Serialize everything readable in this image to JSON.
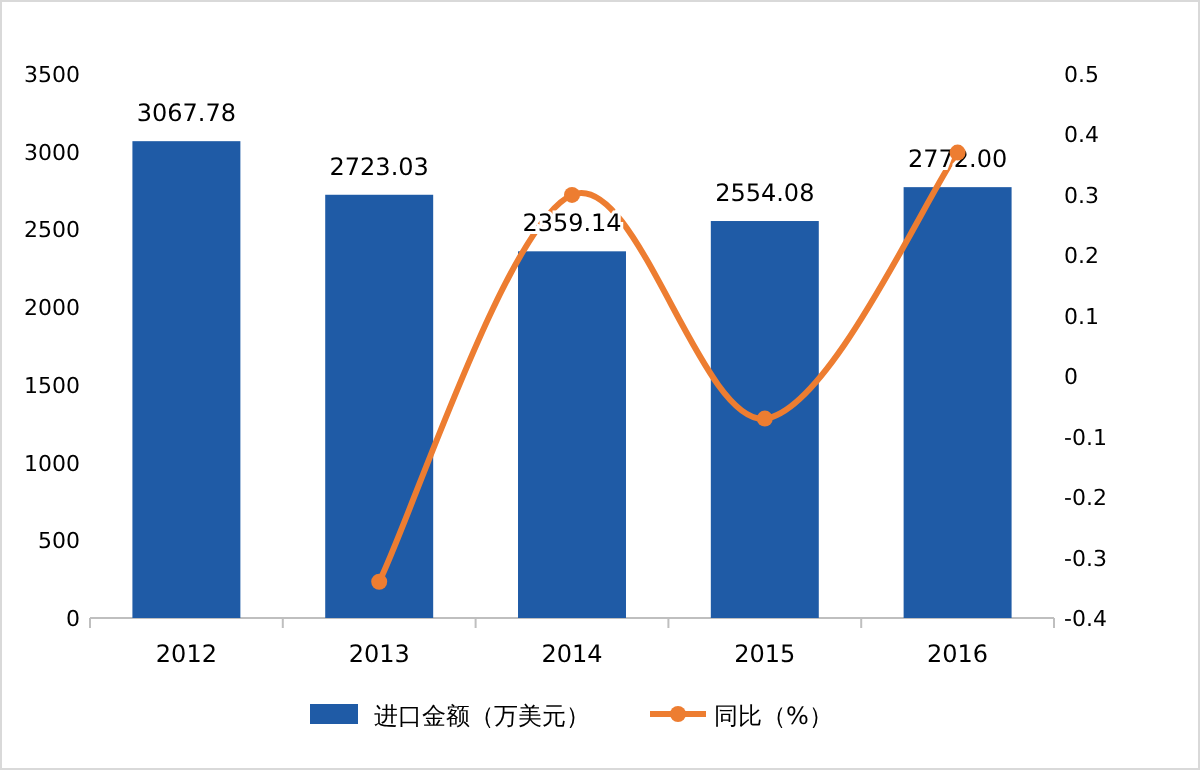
{
  "chart_data": {
    "type": "bar",
    "categories": [
      "2012",
      "2013",
      "2014",
      "2015",
      "2016"
    ],
    "series": [
      {
        "name": "进口金额（万美元）",
        "color": "#1f5ba6",
        "values": [
          3067.78,
          2723.03,
          2359.14,
          2554.08,
          2772.0
        ],
        "value_labels": [
          "3067.78",
          "2723.03",
          "2359.14",
          "2554.08",
          "2772.00"
        ]
      },
      {
        "name": "同比（%）",
        "type": "line",
        "axis": "y2",
        "color": "#ed7d31",
        "values": [
          null,
          -0.34,
          0.3,
          -0.07,
          0.37
        ]
      }
    ],
    "ylim": [
      0,
      3500
    ],
    "yticks": [
      0,
      500,
      1000,
      1500,
      2000,
      2500,
      3000,
      3500
    ],
    "y2lim": [
      -0.4,
      0.5
    ],
    "y2ticks": [
      -0.4,
      -0.3,
      -0.2,
      -0.1,
      0,
      0.1,
      0.2,
      0.3,
      0.4,
      0.5
    ],
    "marker": "circle",
    "legend": "bottom",
    "grid": false
  }
}
